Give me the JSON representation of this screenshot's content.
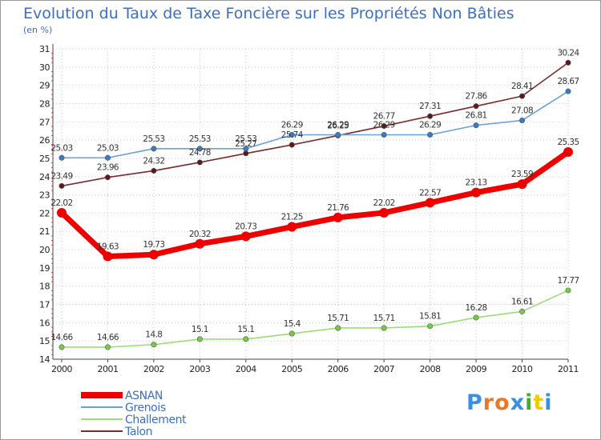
{
  "chart_data": {
    "type": "line",
    "title": "Evolution du Taux de Taxe Foncière sur les Propriétés Non Bâties",
    "subtitle": "(en %)",
    "x": [
      "2000",
      "2001",
      "2002",
      "2003",
      "2004",
      "2005",
      "2006",
      "2007",
      "2008",
      "2009",
      "2010",
      "2011"
    ],
    "ylim": [
      14,
      31
    ],
    "yticks": [
      14,
      15,
      16,
      17,
      18,
      19,
      20,
      21,
      22,
      23,
      24,
      25,
      26,
      27,
      28,
      29,
      30,
      31
    ],
    "grid": "dotted",
    "legend_position": "bottom-left",
    "series": [
      {
        "name": "Talon",
        "color": "#7b2a2a",
        "marker": "#5a1a1a",
        "width": "thin",
        "values": [
          23.49,
          23.96,
          24.32,
          24.78,
          25.27,
          25.74,
          26.25,
          26.77,
          27.31,
          27.86,
          28.41,
          30.24
        ],
        "labels": [
          "23.49",
          "23.96",
          "24.32",
          "24.78",
          "25.27",
          "25.74",
          "26.25",
          "26.77",
          "27.31",
          "27.86",
          "28.41",
          "30.24"
        ]
      },
      {
        "name": "Challement",
        "color": "#99dd77",
        "marker": "#77cc44",
        "width": "thin",
        "values": [
          14.66,
          14.66,
          14.8,
          15.1,
          15.1,
          15.4,
          15.71,
          15.71,
          15.81,
          16.28,
          16.61,
          17.77
        ],
        "labels": [
          "14.66",
          "14.66",
          "14.8",
          "15.1",
          "15.1",
          "15.4",
          "15.71",
          "15.71",
          "15.81",
          "16.28",
          "16.61",
          "17.77"
        ]
      },
      {
        "name": "Grenois",
        "color": "#6aa0d6",
        "marker": "#3a7cc4",
        "width": "thin",
        "values": [
          25.03,
          25.03,
          25.53,
          25.53,
          25.53,
          26.29,
          26.29,
          26.29,
          26.29,
          26.81,
          27.08,
          28.67
        ],
        "labels": [
          "25.03",
          "25.03",
          "25.53",
          "25.53",
          "25.53",
          "26.29",
          "26.29",
          "26.29",
          "26.29",
          "26.81",
          "27.08",
          "28.67"
        ]
      },
      {
        "name": "ASNAN",
        "color": "#ee0000",
        "marker": "#ee0000",
        "width": "thick",
        "values": [
          22.02,
          19.63,
          19.73,
          20.32,
          20.73,
          21.25,
          21.76,
          22.02,
          22.57,
          23.13,
          23.59,
          25.35
        ],
        "labels": [
          "22.02",
          "19.63",
          "19.73",
          "20.32",
          "20.73",
          "21.25",
          "21.76",
          "22.02",
          "22.57",
          "23.13",
          "23.59",
          "25.35"
        ]
      }
    ],
    "legend": [
      {
        "name": "ASNAN",
        "color": "#ee0000",
        "width": "thick"
      },
      {
        "name": "Grenois",
        "color": "#6aa0d6",
        "width": "thin"
      },
      {
        "name": "Challement",
        "color": "#99dd77",
        "width": "thin"
      },
      {
        "name": "Talon",
        "color": "#7b2a2a",
        "width": "thin"
      }
    ]
  },
  "branding": {
    "logo_text": "Proxiti",
    "logo_colors": [
      "#3a8ee6",
      "#ee7722",
      "#ee7722",
      "#3a8ee6",
      "#44aa33",
      "#eecc00",
      "#3a8ee6"
    ]
  }
}
